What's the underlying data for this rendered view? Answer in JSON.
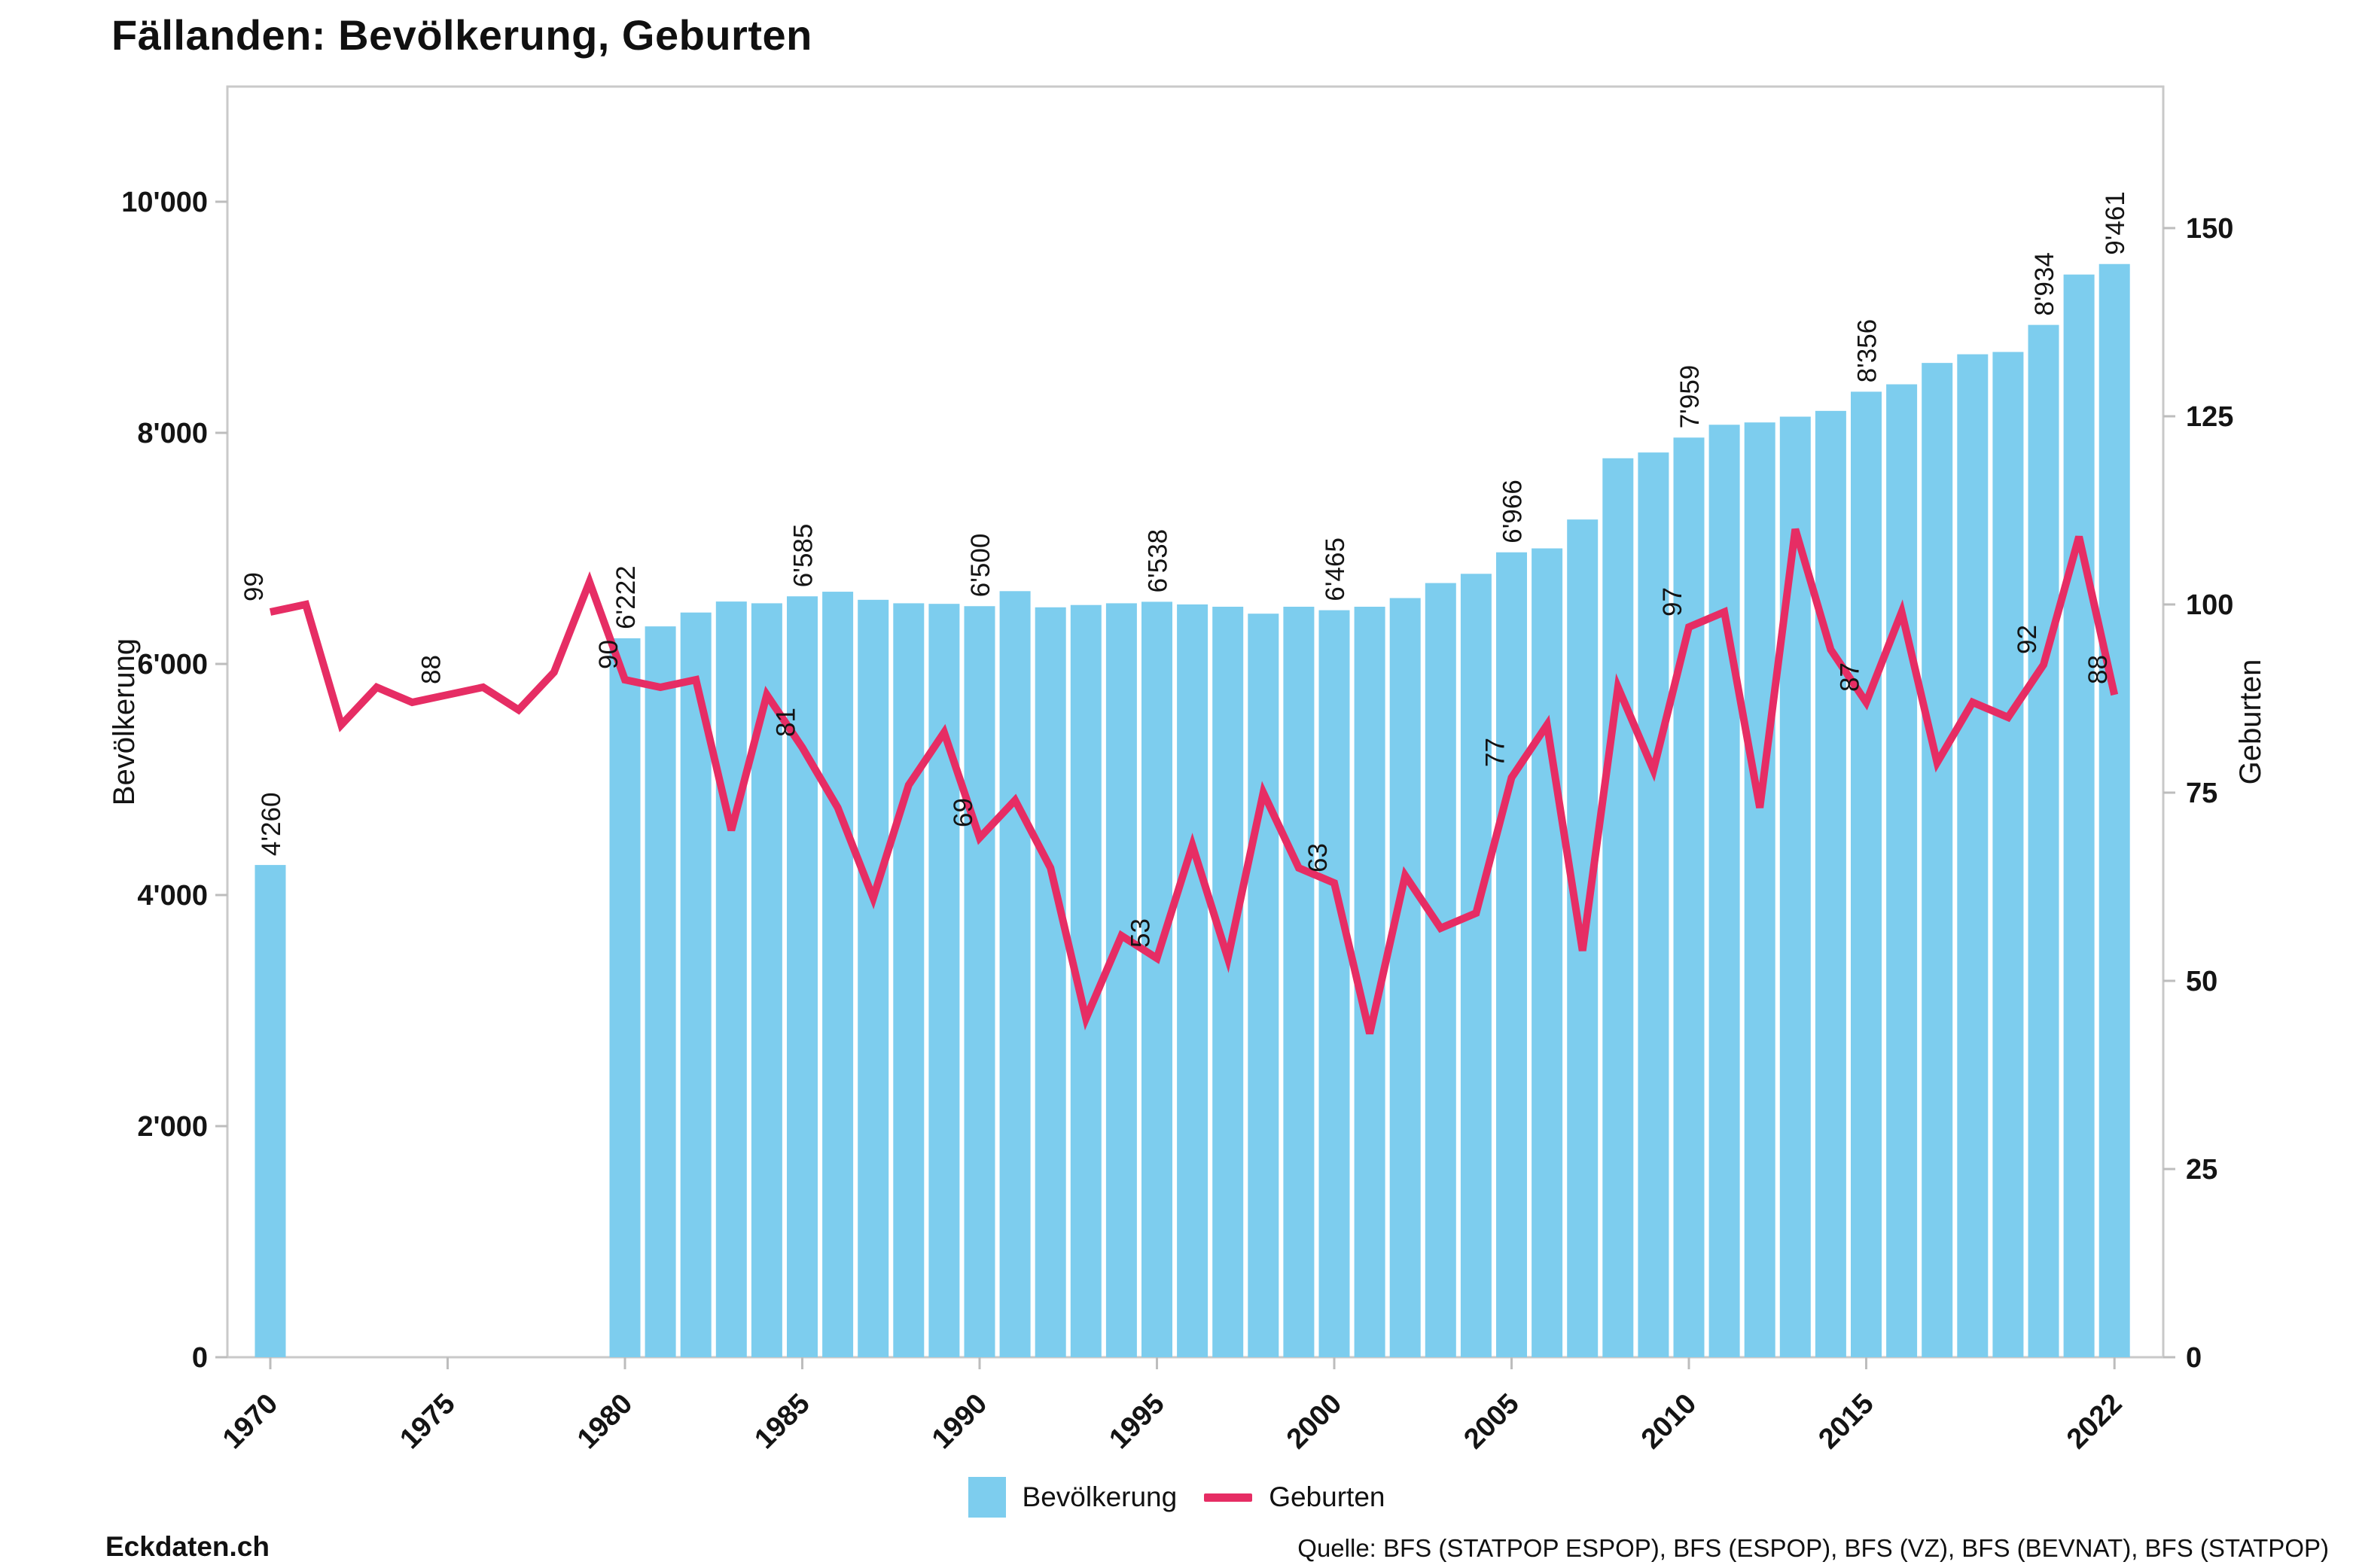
{
  "title": "Fällanden: Bevölkerung, Geburten",
  "legend": {
    "items": [
      {
        "label": "Bevölkerung",
        "swatch": "square",
        "color": "#7DCDEE"
      },
      {
        "label": "Geburten",
        "swatch": "line",
        "color": "#E62D64"
      }
    ]
  },
  "footer": {
    "brand": "Eckdaten.ch",
    "source": "Quelle: BFS (STATPOP ESPOP), BFS (ESPOP), BFS (VZ), BFS (BEVNAT), BFS (STATPOP)"
  },
  "chart_data": {
    "type": "bar+line",
    "title": "Fällanden: Bevölkerung, Geburten",
    "x": [
      1970,
      1971,
      1972,
      1973,
      1974,
      1975,
      1976,
      1977,
      1978,
      1979,
      1980,
      1981,
      1982,
      1983,
      1984,
      1985,
      1986,
      1987,
      1988,
      1989,
      1990,
      1991,
      1992,
      1993,
      1994,
      1995,
      1996,
      1997,
      1998,
      1999,
      2000,
      2001,
      2002,
      2003,
      2004,
      2005,
      2006,
      2007,
      2008,
      2009,
      2010,
      2011,
      2012,
      2013,
      2014,
      2015,
      2016,
      2017,
      2018,
      2019,
      2020,
      2021,
      2022
    ],
    "series": [
      {
        "name": "Bevölkerung",
        "type": "bar",
        "axis": "left",
        "color": "#7DCDEE",
        "values": [
          4260,
          null,
          null,
          null,
          null,
          null,
          null,
          null,
          null,
          null,
          6222,
          6325,
          6445,
          6540,
          6525,
          6585,
          6625,
          6555,
          6525,
          6520,
          6500,
          6630,
          6490,
          6510,
          6525,
          6538,
          6515,
          6495,
          6435,
          6495,
          6465,
          6495,
          6570,
          6700,
          6780,
          6966,
          7000,
          7250,
          7780,
          7830,
          7959,
          8070,
          8090,
          8140,
          8190,
          8356,
          8420,
          8605,
          8680,
          8700,
          8934,
          9370,
          9461
        ]
      },
      {
        "name": "Geburten",
        "type": "line",
        "axis": "right",
        "color": "#E62D64",
        "values": [
          99,
          100,
          84,
          89,
          87,
          88,
          89,
          86,
          91,
          103,
          90,
          89,
          90,
          70,
          88,
          81,
          73,
          61,
          76,
          83,
          69,
          74,
          65,
          45,
          56,
          53,
          68,
          53,
          75,
          65,
          63,
          43,
          64,
          57,
          59,
          77,
          84,
          54,
          89,
          78,
          97,
          99,
          73,
          110,
          94,
          87,
          99,
          79,
          87,
          85,
          92,
          109,
          88
        ]
      }
    ],
    "bar_value_labels": {
      "1970": "4'260",
      "1980": "6'222",
      "1985": "6'585",
      "1990": "6'500",
      "1995": "6'538",
      "2000": "6'465",
      "2005": "6'966",
      "2010": "7'959",
      "2015": "8'356",
      "2020": "8'934",
      "2022": "9'461"
    },
    "line_value_labels": {
      "1970": "99",
      "1975": "88",
      "1980": "90",
      "1985": "81",
      "1990": "69",
      "1995": "53",
      "2000": "63",
      "2005": "77",
      "2010": "97",
      "2015": "87",
      "2020": "92",
      "2022": "88"
    },
    "left_axis": {
      "label": "Bevölkerung",
      "min": 0,
      "max": 10000,
      "ticks": [
        0,
        2000,
        4000,
        6000,
        8000,
        10000
      ],
      "tick_labels": [
        "0",
        "2'000",
        "4'000",
        "6'000",
        "8'000",
        "10'000"
      ]
    },
    "right_axis": {
      "label": "Geburten",
      "min": 0,
      "max": 150,
      "ticks": [
        0,
        25,
        50,
        75,
        100,
        125,
        150
      ],
      "tick_labels": [
        "0",
        "25",
        "50",
        "75",
        "100",
        "125",
        "150"
      ]
    },
    "x_axis": {
      "tick_years": [
        1970,
        1975,
        1980,
        1985,
        1990,
        1995,
        2000,
        2005,
        2010,
        2015,
        2022
      ]
    },
    "grid": false,
    "legend_position": "bottom"
  }
}
